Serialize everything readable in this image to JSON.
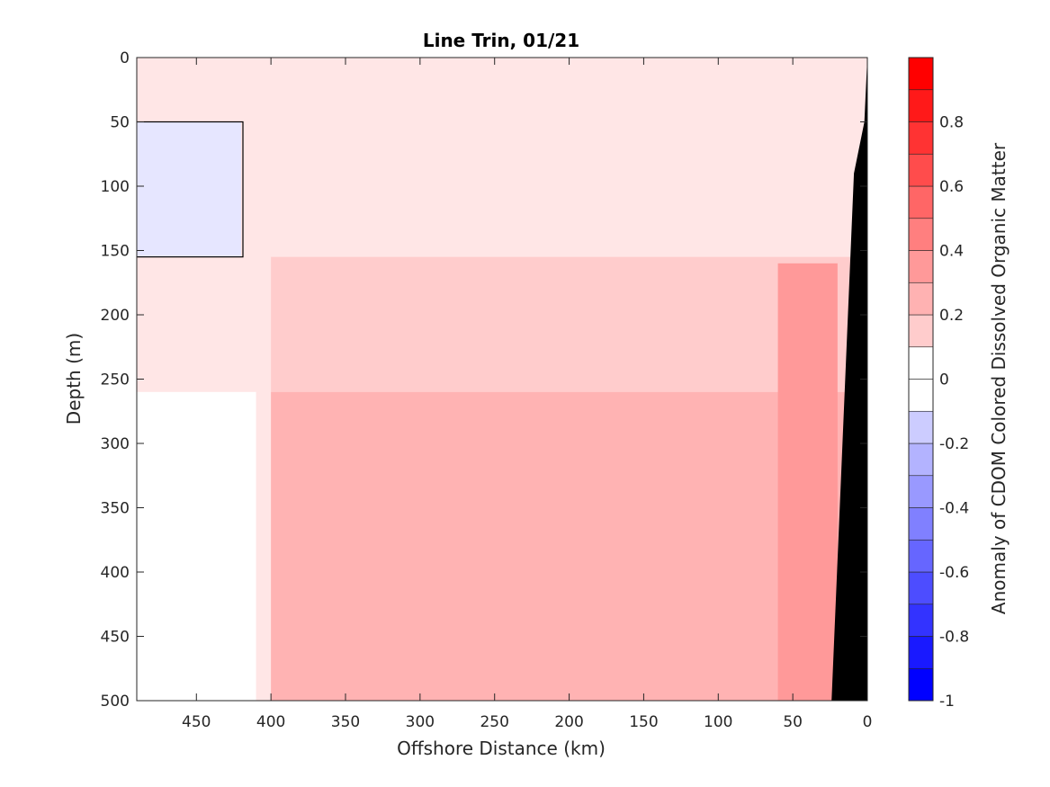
{
  "chart_data": {
    "type": "heatmap",
    "subtype": "filled-contour",
    "title": "Line Trin, 01/21",
    "xlabel": "Offshore Distance (km)",
    "ylabel": "Depth (m)",
    "colorbar_label": "Anomaly of CDOM Colored Dissolved Organic Matter",
    "xlim": [
      490,
      0
    ],
    "ylim": [
      0,
      500
    ],
    "x_reversed": true,
    "y_reversed": true,
    "x_ticks": [
      "450",
      "400",
      "350",
      "300",
      "250",
      "200",
      "150",
      "100",
      "50",
      "0"
    ],
    "y_ticks": [
      "0",
      "50",
      "100",
      "150",
      "200",
      "250",
      "300",
      "350",
      "400",
      "450",
      "500"
    ],
    "colorbar_ticks": [
      "0.8",
      "0.6",
      "0.4",
      "0.2",
      "0",
      "-0.2",
      "-0.4",
      "-0.6",
      "-0.8",
      "-1"
    ],
    "clim": [
      -1,
      1
    ],
    "contour_step": 0.1,
    "colors": {
      "negative_max": "#0000ff",
      "zero": "#ffffff",
      "positive_max": "#ff0000",
      "bathymetry": "#000000",
      "zero_contour": "#000000"
    },
    "grid": false,
    "regions": [
      {
        "x": [
          490,
          420
        ],
        "y": [
          50,
          155
        ],
        "value": -0.1
      },
      {
        "x": [
          490,
          0
        ],
        "y": [
          0,
          155
        ],
        "value": 0.1
      },
      {
        "x": [
          400,
          0
        ],
        "y": [
          155,
          260
        ],
        "value": 0.2
      },
      {
        "x": [
          400,
          0
        ],
        "y": [
          260,
          500
        ],
        "value": 0.3
      },
      {
        "x": [
          490,
          410
        ],
        "y": [
          260,
          500
        ],
        "value": 0.0
      },
      {
        "x": [
          60,
          20
        ],
        "y": [
          160,
          500
        ],
        "value": 0.4
      }
    ],
    "bathymetry_outline": [
      [
        0,
        0
      ],
      [
        2,
        50
      ],
      [
        9,
        90
      ],
      [
        24,
        500
      ]
    ]
  }
}
